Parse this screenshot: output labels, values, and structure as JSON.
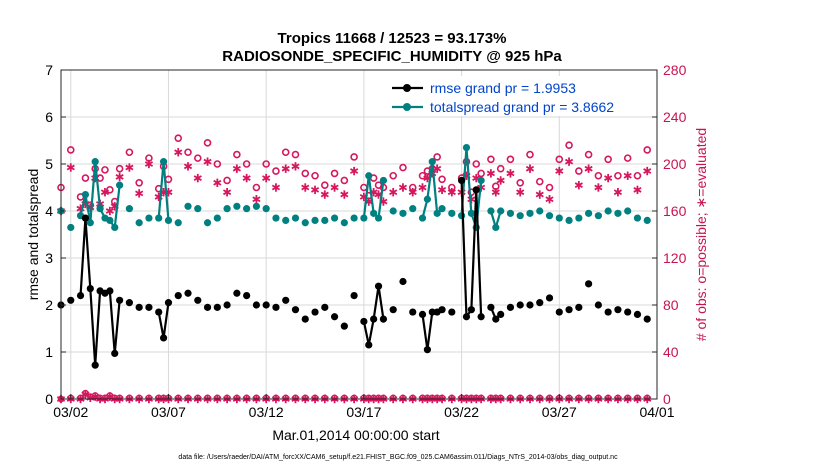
{
  "chart_data": {
    "type": "line",
    "title_line1": "Tropics 11668 / 12523 = 93.173%",
    "title_line2": "RADIOSONDE_SPECIFIC_HUMIDITY @ 925 hPa",
    "xlabel": "Mar.01,2014 00:00:00 start",
    "ylabel_left": "rmse and totalspread",
    "ylabel_right": "# of obs: o=possible; ∗=evaluated",
    "footnote": "data file: /Users/raeder/DAI/ATM_forcXX/CAM6_setup/f.e21.FHIST_BGC.f09_025.CAM6assim.011/Diags_NTrS_2014-03/obs_diag_output.nc",
    "x_tick_labels": [
      "03/02",
      "03/07",
      "03/12",
      "03/17",
      "03/22",
      "03/27",
      "04/01"
    ],
    "x_tick_values": [
      2,
      7,
      12,
      17,
      22,
      27,
      32
    ],
    "xlim": [
      1.5,
      32
    ],
    "ylim_left": [
      0,
      7
    ],
    "ylim_right": [
      0,
      280
    ],
    "y_left_ticks": [
      "0",
      "1",
      "2",
      "3",
      "4",
      "5",
      "6",
      "7"
    ],
    "y_right_ticks": [
      "0",
      "40",
      "80",
      "120",
      "160",
      "200",
      "240",
      "280"
    ],
    "legend": [
      {
        "label": "rmse grand pr = 1.9953",
        "color": "#000000"
      },
      {
        "label": "totalspread grand pr = 3.8662",
        "color": "#008080"
      }
    ],
    "colors": {
      "rmse": "#000000",
      "spread": "#008080",
      "counts": "#d6175e",
      "legend_text": "#0044cc",
      "grid": "#d9d9d9"
    },
    "x": [
      1.5,
      2.0,
      2.5,
      2.75,
      3.0,
      3.25,
      3.5,
      3.75,
      4.0,
      4.25,
      4.5,
      5.0,
      5.5,
      6.0,
      6.5,
      6.75,
      7.0,
      7.5,
      8.0,
      8.5,
      9.0,
      9.5,
      10.0,
      10.5,
      11.0,
      11.5,
      12.0,
      12.5,
      13.0,
      13.5,
      14.0,
      14.5,
      15.0,
      15.5,
      16.0,
      16.5,
      17.0,
      17.25,
      17.5,
      17.75,
      18.0,
      18.5,
      19.0,
      19.5,
      20.0,
      20.25,
      20.5,
      20.75,
      21.0,
      21.5,
      22.0,
      22.25,
      22.5,
      22.75,
      23.0,
      23.5,
      23.75,
      24.0,
      24.5,
      25.0,
      25.5,
      26.0,
      26.5,
      27.0,
      27.5,
      28.0,
      28.5,
      29.0,
      29.5,
      30.0,
      30.5,
      31.0,
      31.5
    ],
    "rmse": [
      2.0,
      2.1,
      2.2,
      3.85,
      2.35,
      0.72,
      2.3,
      2.25,
      2.3,
      0.97,
      2.1,
      2.05,
      1.95,
      1.95,
      1.85,
      1.3,
      2.05,
      2.2,
      2.25,
      2.1,
      1.95,
      1.95,
      2.0,
      2.25,
      2.2,
      2.0,
      2.0,
      1.95,
      2.1,
      1.9,
      1.7,
      1.85,
      1.95,
      1.75,
      1.55,
      2.2,
      1.65,
      1.15,
      1.7,
      2.4,
      1.7,
      1.9,
      2.5,
      1.85,
      1.8,
      1.05,
      1.85,
      1.85,
      1.9,
      1.85,
      4.65,
      1.75,
      1.9,
      4.45,
      1.75,
      1.95,
      1.7,
      1.8,
      1.95,
      2.0,
      2.0,
      2.05,
      2.15,
      1.85,
      1.9,
      1.95,
      2.45,
      2.0,
      1.85,
      1.9,
      1.85,
      1.8,
      1.7
    ],
    "spread": [
      4.0,
      3.65,
      3.9,
      4.35,
      3.75,
      5.05,
      4.05,
      3.85,
      3.8,
      3.65,
      4.55,
      4.05,
      3.75,
      3.85,
      3.85,
      5.05,
      3.8,
      3.75,
      4.1,
      4.05,
      3.75,
      3.85,
      4.05,
      4.1,
      4.05,
      4.1,
      4.05,
      3.85,
      3.8,
      3.85,
      3.75,
      3.8,
      3.8,
      3.85,
      3.75,
      3.85,
      3.85,
      4.75,
      3.95,
      3.85,
      4.65,
      4.0,
      3.95,
      4.05,
      3.85,
      4.25,
      5.05,
      3.95,
      4.05,
      3.95,
      3.9,
      5.35,
      3.95,
      3.65,
      4.65,
      4.0,
      3.65,
      4.0,
      3.95,
      3.9,
      3.95,
      4.0,
      3.9,
      3.85,
      3.8,
      3.85,
      3.95,
      3.9,
      4.0,
      3.95,
      4.0,
      3.85,
      3.8
    ],
    "possible": [
      180,
      212,
      172,
      188,
      165,
      196,
      188,
      195,
      178,
      168,
      196,
      210,
      184,
      205,
      179,
      198,
      187,
      222,
      210,
      205,
      218,
      200,
      186,
      208,
      200,
      180,
      200,
      194,
      210,
      208,
      192,
      190,
      182,
      192,
      186,
      206,
      180,
      173,
      188,
      182,
      180,
      190,
      197,
      180,
      190,
      194,
      196,
      206,
      187,
      180,
      188,
      202,
      176,
      200,
      192,
      204,
      181,
      196,
      204,
      184,
      208,
      185,
      180,
      204,
      216,
      194,
      208,
      190,
      204,
      190,
      205,
      190,
      212
    ],
    "evaluated": [
      160,
      197,
      162,
      166,
      163,
      188,
      166,
      176,
      160,
      164,
      189,
      197,
      175,
      200,
      172,
      176,
      176,
      210,
      198,
      188,
      202,
      184,
      176,
      196,
      188,
      170,
      188,
      180,
      196,
      198,
      180,
      178,
      174,
      180,
      174,
      194,
      172,
      168,
      176,
      174,
      168,
      176,
      180,
      176,
      180,
      188,
      192,
      196,
      178,
      176,
      176,
      190,
      170,
      188,
      180,
      192,
      176,
      186,
      192,
      176,
      196,
      174,
      170,
      194,
      202,
      182,
      196,
      180,
      188,
      176,
      190,
      178,
      194
    ],
    "bottom_possible": [
      0,
      1,
      1,
      5,
      2,
      3,
      1,
      1,
      3,
      1,
      1,
      1,
      1,
      1,
      1,
      1,
      1,
      1,
      1,
      1,
      1,
      1,
      1,
      1,
      1,
      1,
      1,
      1,
      1,
      1,
      1,
      1,
      1,
      1,
      1,
      1,
      1,
      1,
      1,
      1,
      1,
      1,
      1,
      1,
      1,
      1,
      1,
      1,
      1,
      1,
      1,
      1,
      1,
      1,
      1,
      1,
      1,
      1,
      1,
      1,
      1,
      1,
      1,
      1,
      1,
      1,
      1,
      1,
      1,
      1,
      1,
      1,
      1
    ],
    "bottom_evaluated": [
      0,
      0,
      0,
      4,
      1,
      2,
      0,
      0,
      2,
      0,
      0,
      0,
      0,
      0,
      0,
      0,
      0,
      0,
      0,
      0,
      0,
      0,
      0,
      0,
      0,
      0,
      0,
      0,
      0,
      0,
      0,
      0,
      0,
      0,
      0,
      0,
      0,
      0,
      0,
      0,
      0,
      0,
      0,
      0,
      0,
      0,
      0,
      0,
      0,
      0,
      0,
      0,
      0,
      0,
      0,
      0,
      0,
      0,
      0,
      0,
      0,
      0,
      0,
      0,
      0,
      0,
      0,
      0,
      0,
      0,
      0,
      0,
      0
    ]
  }
}
